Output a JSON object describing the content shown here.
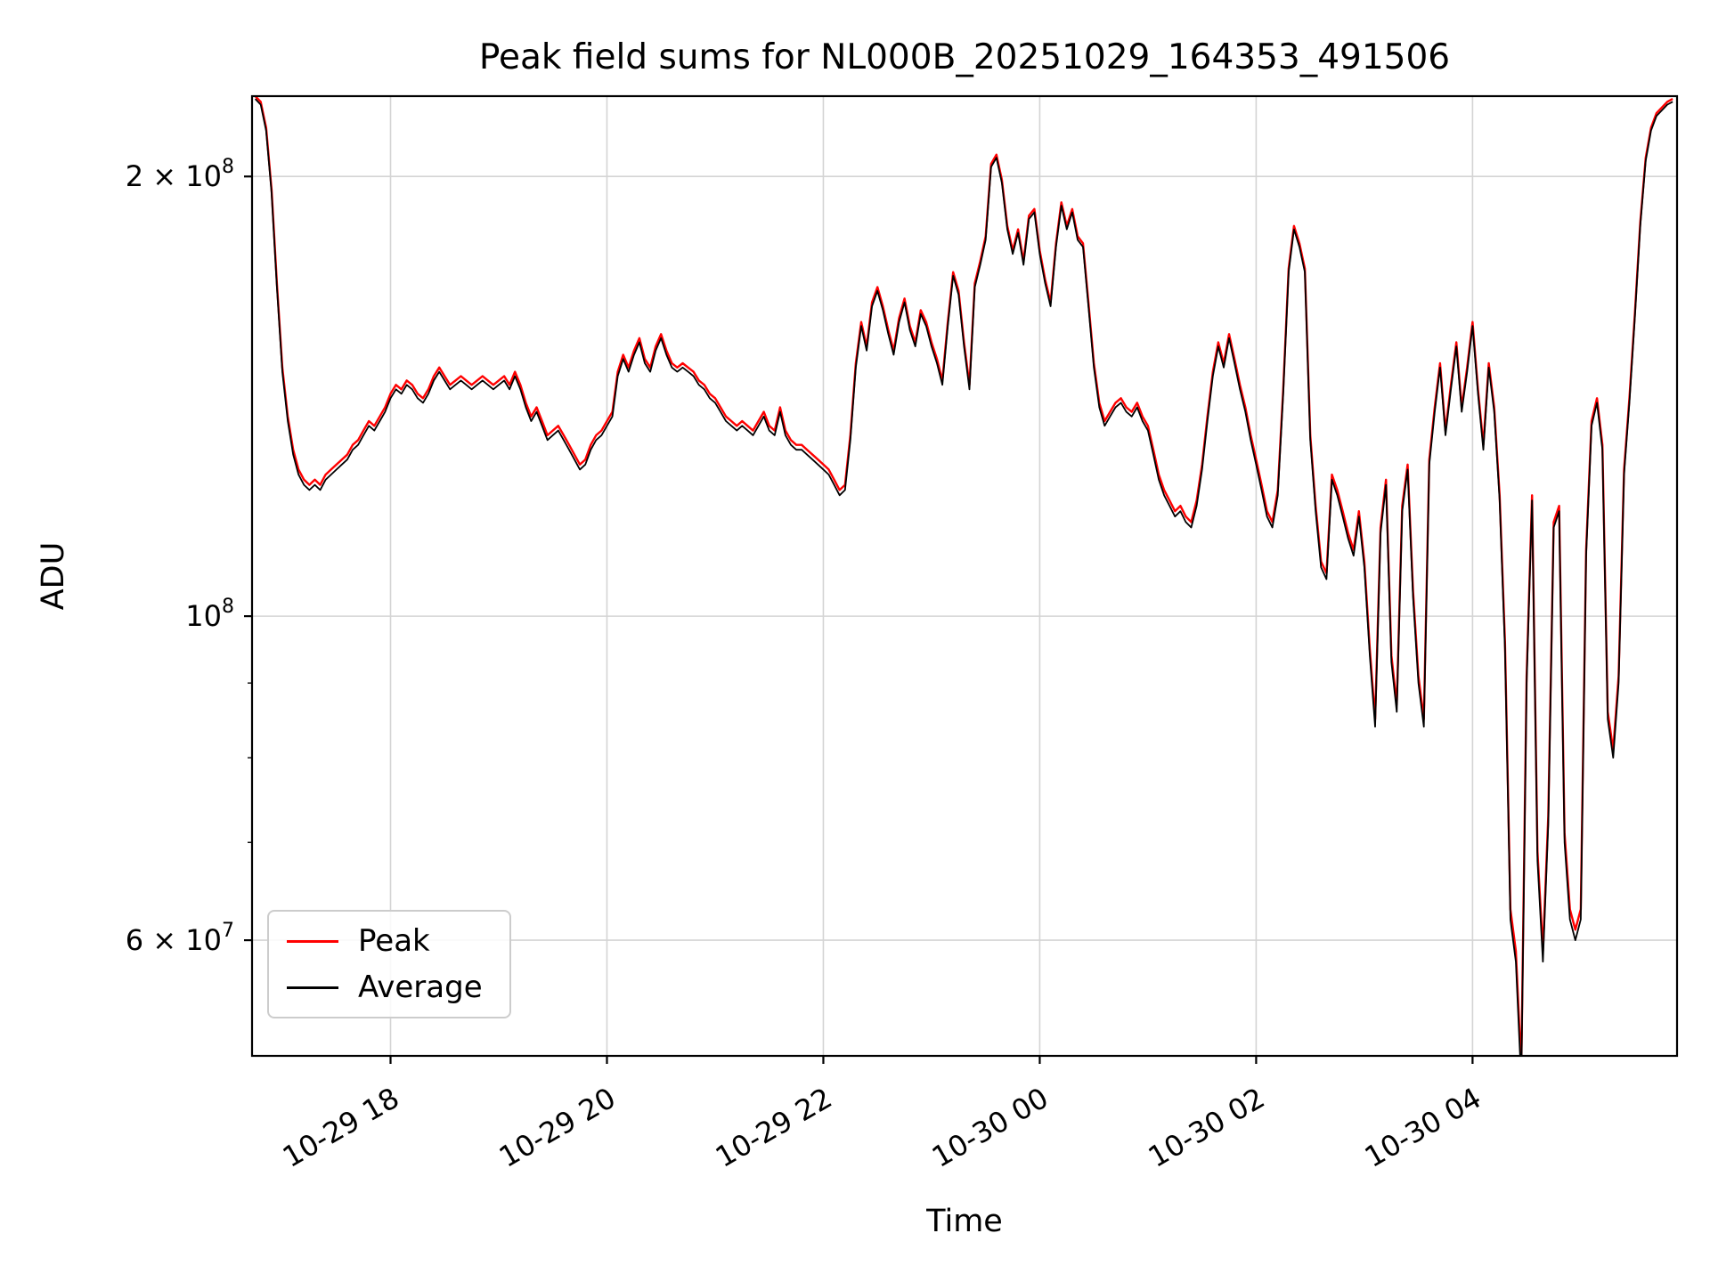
{
  "chart_data": {
    "type": "line",
    "title": "Peak field sums for NL000B_20251029_164353_491506",
    "xlabel": "Time",
    "ylabel": "ADU",
    "yscale": "log",
    "grid": true,
    "legend_position": "lower left",
    "x_unit": "hours since 2025-10-29 16:00",
    "value_unit": "millions of ADU (1e6)",
    "x_range": [
      0.72,
      13.89
    ],
    "y_range_millions": [
      50,
      227
    ],
    "x_start": 0.75,
    "x_step": 0.05,
    "x_ticks": [
      {
        "t": 2,
        "label": "10-29 18"
      },
      {
        "t": 4,
        "label": "10-29 20"
      },
      {
        "t": 6,
        "label": "10-29 22"
      },
      {
        "t": 8,
        "label": "10-30 00"
      },
      {
        "t": 10,
        "label": "10-30 02"
      },
      {
        "t": 12,
        "label": "10-30 04"
      }
    ],
    "y_ticks": [
      {
        "v": 200,
        "label": "2 × 10^8"
      },
      {
        "v": 100,
        "label": "10^8"
      },
      {
        "v": 60,
        "label": "6 × 10^7"
      }
    ],
    "y_minor_ticks": [
      70,
      80,
      90
    ],
    "series": [
      {
        "name": "Peak",
        "color": "#ff0000",
        "values": [
          227,
          225,
          216,
          196,
          169,
          148,
          137,
          130,
          126,
          124,
          123,
          124,
          123,
          125,
          126,
          127,
          128,
          129,
          131,
          132,
          134,
          136,
          135,
          137,
          139,
          142,
          144,
          143,
          145,
          144,
          142,
          141,
          143,
          146,
          148,
          146,
          144,
          145,
          146,
          145,
          144,
          145,
          146,
          145,
          144,
          145,
          146,
          144,
          147,
          144,
          140,
          137,
          139,
          136,
          133,
          134,
          135,
          133,
          131,
          129,
          127,
          128,
          131,
          133,
          134,
          136,
          138,
          147,
          151,
          148,
          152,
          155,
          150,
          148,
          153,
          156,
          152,
          149,
          148,
          149,
          148,
          147,
          145,
          144,
          142,
          141,
          139,
          137,
          136,
          135,
          136,
          135,
          134,
          136,
          138,
          135,
          134,
          139,
          134,
          132,
          131,
          131,
          130,
          129,
          128,
          127,
          126,
          124,
          122,
          123,
          133,
          149,
          159,
          153,
          164,
          168,
          163,
          157,
          152,
          160,
          165,
          158,
          154,
          162,
          159,
          154,
          150,
          145,
          159,
          172,
          167,
          154,
          144,
          169,
          175,
          182,
          204,
          207,
          199,
          185,
          178,
          184,
          175,
          188,
          190,
          178,
          170,
          164,
          180,
          192,
          185,
          190,
          182,
          180,
          164,
          149,
          140,
          136,
          138,
          140,
          141,
          139,
          138,
          140,
          137,
          135,
          130,
          125,
          122,
          120,
          118,
          119,
          117,
          116,
          120,
          127,
          137,
          147,
          154,
          149,
          156,
          150,
          144,
          139,
          133,
          128,
          123,
          118,
          116,
          122,
          143,
          173,
          185,
          180,
          173,
          133,
          119,
          109,
          107,
          125,
          122,
          118,
          114,
          111,
          118,
          109,
          95,
          85,
          115,
          124,
          94,
          87,
          119,
          127,
          104,
          91,
          85,
          128,
          139,
          149,
          134,
          144,
          154,
          139,
          148,
          159,
          143,
          131,
          149,
          139,
          121,
          96,
          63,
          59,
          49,
          91,
          121,
          69,
          59,
          73,
          116,
          119,
          71,
          63,
          61,
          63,
          111,
          136,
          141,
          131,
          86,
          81,
          91,
          126,
          141,
          161,
          186,
          206,
          216,
          221,
          223,
          225,
          226
        ]
      },
      {
        "name": "Average",
        "color": "#000000",
        "values": [
          226,
          224,
          215,
          195,
          168,
          147,
          136,
          129,
          125,
          123,
          122,
          123,
          122,
          124,
          125,
          126,
          127,
          128,
          130,
          131,
          133,
          135,
          134,
          136,
          138,
          141,
          143,
          142,
          144,
          143,
          141,
          140,
          142,
          145,
          147,
          145,
          143,
          144,
          145,
          144,
          143,
          144,
          145,
          144,
          143,
          144,
          145,
          143,
          146,
          143,
          139,
          136,
          138,
          135,
          132,
          133,
          134,
          132,
          130,
          128,
          126,
          127,
          130,
          132,
          133,
          135,
          137,
          146,
          150,
          147,
          151,
          154,
          149,
          147,
          152,
          155,
          151,
          148,
          147,
          148,
          147,
          146,
          144,
          143,
          141,
          140,
          138,
          136,
          135,
          134,
          135,
          134,
          133,
          135,
          137,
          134,
          133,
          138,
          133,
          131,
          130,
          130,
          129,
          128,
          127,
          126,
          125,
          123,
          121,
          122,
          132,
          148,
          158,
          152,
          163,
          167,
          162,
          156,
          151,
          159,
          164,
          157,
          153,
          161,
          158,
          153,
          149,
          144,
          158,
          171,
          166,
          153,
          143,
          168,
          174,
          181,
          203,
          206,
          198,
          184,
          177,
          183,
          174,
          187,
          189,
          177,
          169,
          163,
          179,
          191,
          184,
          189,
          181,
          179,
          163,
          148,
          139,
          135,
          137,
          139,
          140,
          138,
          137,
          139,
          136,
          134,
          129,
          124,
          121,
          119,
          117,
          118,
          116,
          115,
          119,
          126,
          136,
          146,
          153,
          148,
          155,
          149,
          143,
          138,
          132,
          127,
          122,
          117,
          115,
          121,
          142,
          172,
          184,
          179,
          172,
          132,
          118,
          108,
          106,
          124,
          121,
          117,
          113,
          110,
          117,
          108,
          94,
          84,
          114,
          123,
          93,
          86,
          118,
          126,
          103,
          90,
          84,
          127,
          138,
          148,
          133,
          143,
          153,
          138,
          147,
          158,
          142,
          130,
          148,
          138,
          120,
          95,
          62,
          58,
          48,
          90,
          120,
          68,
          58,
          72,
          115,
          118,
          70,
          62,
          60,
          62,
          110,
          135,
          140,
          130,
          85,
          80,
          90,
          125,
          140,
          160,
          185,
          205,
          215,
          220,
          222,
          224,
          225
        ]
      }
    ]
  }
}
